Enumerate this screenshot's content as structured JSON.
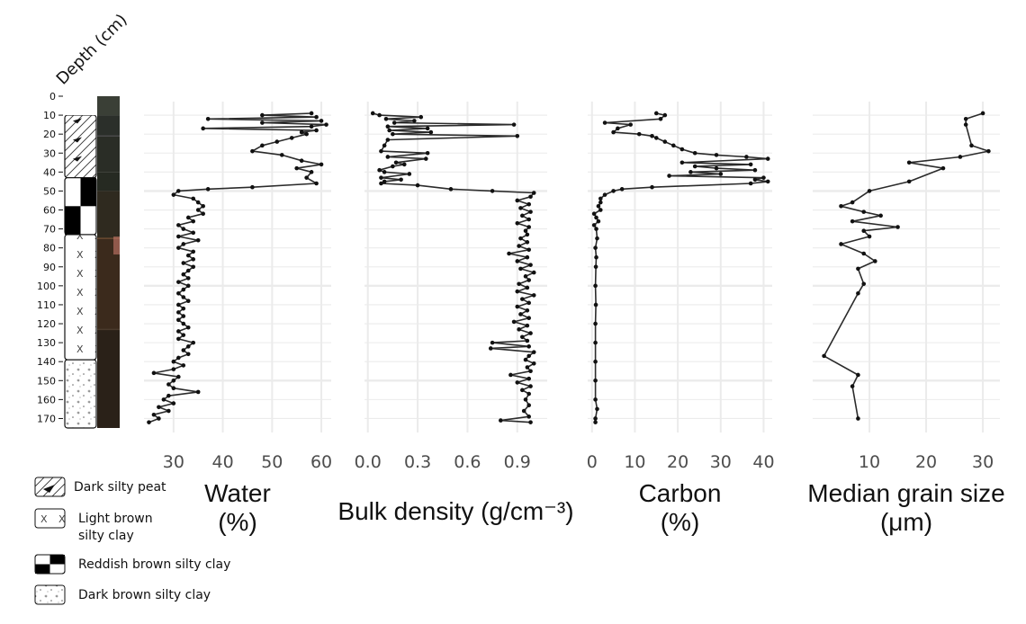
{
  "depth_axis": {
    "label": "Depth (cm)",
    "ticks": [
      0,
      10,
      20,
      30,
      40,
      50,
      60,
      70,
      80,
      90,
      100,
      110,
      120,
      130,
      140,
      150,
      160,
      170
    ]
  },
  "lithology": [
    {
      "name": "Dark silty peat",
      "top": 10,
      "bottom": 43,
      "pattern": "peat"
    },
    {
      "name": "Reddish brown silty clay",
      "top": 43,
      "bottom": 73,
      "pattern": "checker"
    },
    {
      "name": "Light brown silty clay",
      "top": 73,
      "bottom": 139,
      "pattern": "x"
    },
    {
      "name": "Dark brown silty clay",
      "top": 139,
      "bottom": 175,
      "pattern": "dots"
    }
  ],
  "legend": [
    {
      "pattern": "peat",
      "label_lines": [
        "Dark silty peat"
      ]
    },
    {
      "pattern": "x",
      "label_lines": [
        "Light brown",
        "silty clay"
      ]
    },
    {
      "pattern": "checker",
      "label_lines": [
        "Reddish brown silty clay"
      ]
    },
    {
      "pattern": "dots",
      "label_lines": [
        "Dark brown silty clay"
      ]
    }
  ],
  "chart_data": [
    {
      "type": "line",
      "xlabel_lines": [
        "Water",
        "(%)"
      ],
      "xlim": [
        24,
        62
      ],
      "xticks": [
        30,
        40,
        50,
        60
      ],
      "ylim": [
        175,
        7
      ],
      "series": [
        {
          "points": [
            [
              58,
              9
            ],
            [
              48,
              10
            ],
            [
              59,
              11
            ],
            [
              37,
              12
            ],
            [
              60,
              13
            ],
            [
              48,
              14
            ],
            [
              61,
              15
            ],
            [
              58,
              16
            ],
            [
              36,
              17
            ],
            [
              59,
              18
            ],
            [
              56,
              19
            ],
            [
              57,
              20
            ],
            [
              54,
              22
            ],
            [
              51,
              24
            ],
            [
              48,
              26
            ],
            [
              46,
              29
            ],
            [
              52,
              31
            ],
            [
              56,
              34
            ],
            [
              60,
              36
            ],
            [
              55,
              38
            ],
            [
              58,
              40
            ],
            [
              57,
              43
            ],
            [
              59,
              46
            ],
            [
              46,
              48
            ],
            [
              37,
              49
            ],
            [
              31,
              50
            ],
            [
              30,
              52
            ],
            [
              34,
              54
            ],
            [
              35,
              56
            ],
            [
              36,
              58
            ],
            [
              35,
              60
            ],
            [
              36,
              62
            ],
            [
              33,
              64
            ],
            [
              34,
              66
            ],
            [
              31,
              68
            ],
            [
              32,
              70
            ],
            [
              34,
              72
            ],
            [
              31,
              74
            ],
            [
              35,
              76
            ],
            [
              32,
              78
            ],
            [
              31,
              80
            ],
            [
              34,
              82
            ],
            [
              33,
              84
            ],
            [
              34,
              86
            ],
            [
              32,
              88
            ],
            [
              34,
              90
            ],
            [
              33,
              92
            ],
            [
              32,
              94
            ],
            [
              33,
              96
            ],
            [
              31,
              98
            ],
            [
              33,
              100
            ],
            [
              32,
              102
            ],
            [
              31,
              104
            ],
            [
              32,
              106
            ],
            [
              33,
              108
            ],
            [
              31,
              110
            ],
            [
              32,
              112
            ],
            [
              31,
              114
            ],
            [
              32,
              116
            ],
            [
              31,
              118
            ],
            [
              32,
              120
            ],
            [
              33,
              122
            ],
            [
              31,
              124
            ],
            [
              32,
              126
            ],
            [
              31,
              128
            ],
            [
              34,
              130
            ],
            [
              33,
              132
            ],
            [
              32,
              134
            ],
            [
              33,
              136
            ],
            [
              31,
              138
            ],
            [
              30,
              140
            ],
            [
              32,
              142
            ],
            [
              30,
              144
            ],
            [
              26,
              146
            ],
            [
              31,
              148
            ],
            [
              30,
              150
            ],
            [
              29,
              152
            ],
            [
              30,
              154
            ],
            [
              35,
              156
            ],
            [
              29,
              158
            ],
            [
              28,
              160
            ],
            [
              30,
              162
            ],
            [
              27,
              164
            ],
            [
              29,
              166
            ],
            [
              26,
              168
            ],
            [
              27,
              170
            ],
            [
              25,
              172
            ]
          ]
        }
      ]
    },
    {
      "type": "line",
      "xlabel": "Bulk density (g/cm⁻³)",
      "xlim": [
        -0.02,
        1.08
      ],
      "xticks": [
        0.0,
        0.3,
        0.6,
        0.9
      ],
      "xtick_labels": [
        "0.0",
        "0.3",
        "0.6",
        "0.9"
      ],
      "ylim": [
        175,
        7
      ],
      "series": [
        {
          "points": [
            [
              0.03,
              9
            ],
            [
              0.07,
              10
            ],
            [
              0.32,
              11
            ],
            [
              0.11,
              12
            ],
            [
              0.28,
              13
            ],
            [
              0.16,
              14
            ],
            [
              0.88,
              15
            ],
            [
              0.12,
              16
            ],
            [
              0.36,
              17
            ],
            [
              0.13,
              18
            ],
            [
              0.38,
              19
            ],
            [
              0.15,
              20
            ],
            [
              0.9,
              21
            ],
            [
              0.12,
              23
            ],
            [
              0.1,
              26
            ],
            [
              0.08,
              29
            ],
            [
              0.36,
              30
            ],
            [
              0.12,
              32
            ],
            [
              0.35,
              33
            ],
            [
              0.17,
              35
            ],
            [
              0.22,
              36
            ],
            [
              0.15,
              37
            ],
            [
              0.07,
              39
            ],
            [
              0.1,
              40
            ],
            [
              0.25,
              41
            ],
            [
              0.08,
              43
            ],
            [
              0.2,
              44
            ],
            [
              0.1,
              45
            ],
            [
              0.08,
              46
            ],
            [
              0.3,
              47
            ],
            [
              0.5,
              49
            ],
            [
              0.75,
              50
            ],
            [
              1.0,
              51
            ],
            [
              0.98,
              53
            ],
            [
              0.9,
              55
            ],
            [
              0.97,
              57
            ],
            [
              0.92,
              59
            ],
            [
              0.98,
              61
            ],
            [
              0.93,
              63
            ],
            [
              0.97,
              65
            ],
            [
              0.9,
              67
            ],
            [
              0.97,
              69
            ],
            [
              0.95,
              71
            ],
            [
              0.96,
              73
            ],
            [
              0.92,
              75
            ],
            [
              0.96,
              77
            ],
            [
              0.91,
              79
            ],
            [
              0.97,
              81
            ],
            [
              0.85,
              83
            ],
            [
              0.96,
              85
            ],
            [
              0.9,
              87
            ],
            [
              0.98,
              89
            ],
            [
              0.92,
              91
            ],
            [
              1.0,
              93
            ],
            [
              0.95,
              95
            ],
            [
              0.97,
              97
            ],
            [
              0.91,
              99
            ],
            [
              0.96,
              101
            ],
            [
              0.9,
              103
            ],
            [
              1.0,
              105
            ],
            [
              0.93,
              107
            ],
            [
              0.97,
              109
            ],
            [
              0.9,
              111
            ],
            [
              0.96,
              113
            ],
            [
              0.92,
              115
            ],
            [
              0.97,
              117
            ],
            [
              0.88,
              119
            ],
            [
              0.96,
              121
            ],
            [
              0.91,
              123
            ],
            [
              0.98,
              125
            ],
            [
              0.93,
              127
            ],
            [
              0.96,
              129
            ],
            [
              0.75,
              130
            ],
            [
              0.97,
              132
            ],
            [
              0.74,
              133
            ],
            [
              1.0,
              135
            ],
            [
              0.97,
              137
            ],
            [
              0.95,
              139
            ],
            [
              1.0,
              141
            ],
            [
              0.96,
              143
            ],
            [
              0.98,
              145
            ],
            [
              0.86,
              147
            ],
            [
              0.97,
              149
            ],
            [
              0.9,
              151
            ],
            [
              0.98,
              153
            ],
            [
              0.93,
              155
            ],
            [
              0.97,
              157
            ],
            [
              0.95,
              160
            ],
            [
              0.97,
              163
            ],
            [
              0.94,
              166
            ],
            [
              0.97,
              169
            ],
            [
              0.8,
              171
            ],
            [
              0.98,
              172
            ]
          ]
        }
      ]
    },
    {
      "type": "line",
      "xlabel_lines": [
        "Carbon",
        "(%)"
      ],
      "xlim": [
        -1,
        42
      ],
      "xticks": [
        0,
        10,
        20,
        30,
        40
      ],
      "ylim": [
        175,
        7
      ],
      "series": [
        {
          "points": [
            [
              15,
              9
            ],
            [
              17,
              10
            ],
            [
              16,
              12
            ],
            [
              3,
              14
            ],
            [
              9,
              15
            ],
            [
              6,
              17
            ],
            [
              5,
              19
            ],
            [
              11,
              20
            ],
            [
              14,
              21
            ],
            [
              15,
              22
            ],
            [
              17,
              24
            ],
            [
              19,
              26
            ],
            [
              21,
              28
            ],
            [
              24,
              30
            ],
            [
              29,
              31
            ],
            [
              36,
              32
            ],
            [
              41,
              33
            ],
            [
              21,
              35
            ],
            [
              37,
              36
            ],
            [
              24,
              37
            ],
            [
              29,
              38
            ],
            [
              38,
              39
            ],
            [
              23,
              40
            ],
            [
              30,
              41
            ],
            [
              18,
              42
            ],
            [
              40,
              43
            ],
            [
              38,
              44
            ],
            [
              41,
              45
            ],
            [
              37,
              46
            ],
            [
              14,
              48
            ],
            [
              7,
              49
            ],
            [
              5,
              50
            ],
            [
              3,
              52
            ],
            [
              2,
              54
            ],
            [
              2,
              56
            ],
            [
              1.5,
              58
            ],
            [
              2,
              60
            ],
            [
              0.5,
              62
            ],
            [
              1,
              64
            ],
            [
              1.5,
              66
            ],
            [
              0.5,
              68
            ],
            [
              1,
              70
            ],
            [
              1.2,
              75
            ],
            [
              0.8,
              80
            ],
            [
              1,
              85
            ],
            [
              0.9,
              90
            ],
            [
              0.8,
              100
            ],
            [
              0.9,
              110
            ],
            [
              0.8,
              120
            ],
            [
              0.8,
              130
            ],
            [
              0.8,
              140
            ],
            [
              0.8,
              150
            ],
            [
              0.8,
              160
            ],
            [
              1.2,
              165
            ],
            [
              0.8,
              170
            ],
            [
              0.8,
              172
            ]
          ]
        }
      ]
    },
    {
      "type": "line",
      "xlabel_lines": [
        "Median grain size",
        "(μm)"
      ],
      "xlim": [
        0,
        33
      ],
      "xticks": [
        10,
        20,
        30
      ],
      "ylim": [
        175,
        7
      ],
      "series": [
        {
          "points": [
            [
              30,
              9
            ],
            [
              27,
              12
            ],
            [
              27,
              15
            ],
            [
              28,
              26
            ],
            [
              31,
              29
            ],
            [
              26,
              32
            ],
            [
              17,
              35
            ],
            [
              23,
              38
            ],
            [
              17,
              45
            ],
            [
              10,
              50
            ],
            [
              7,
              56
            ],
            [
              5,
              58
            ],
            [
              9,
              61
            ],
            [
              12,
              63
            ],
            [
              7,
              66
            ],
            [
              15,
              69
            ],
            [
              9,
              71
            ],
            [
              10,
              74
            ],
            [
              5,
              78
            ],
            [
              9,
              83
            ],
            [
              11,
              87
            ],
            [
              8,
              91
            ],
            [
              9,
              99
            ],
            [
              8,
              104
            ],
            [
              2,
              137
            ],
            [
              8,
              147
            ],
            [
              7,
              153
            ],
            [
              8,
              170
            ]
          ]
        }
      ]
    }
  ]
}
